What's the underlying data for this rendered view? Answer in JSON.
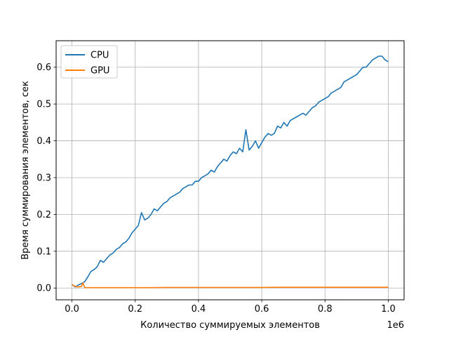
{
  "chart_data": {
    "type": "line",
    "title": "",
    "xlabel": "Количество суммируемых элементов",
    "ylabel": "Время суммирования элементов, сек",
    "x_offset_label": "1e6",
    "xlim": [
      -0.05,
      1.05
    ],
    "ylim": [
      -0.032,
      0.672
    ],
    "grid": true,
    "legend_position": "top-left",
    "x_ticks": [
      0.0,
      0.2,
      0.4,
      0.6,
      0.8,
      1.0
    ],
    "x_tick_labels": [
      "0.0",
      "0.2",
      "0.4",
      "0.6",
      "0.8",
      "1.0"
    ],
    "y_ticks": [
      0.0,
      0.1,
      0.2,
      0.3,
      0.4,
      0.5,
      0.6
    ],
    "y_tick_labels": [
      "0.0",
      "0.1",
      "0.2",
      "0.3",
      "0.4",
      "0.5",
      "0.6"
    ],
    "series": [
      {
        "name": "CPU",
        "color": "#1f77b4",
        "points": [
          [
            0.0,
            0.01
          ],
          [
            0.01,
            0.003
          ],
          [
            0.02,
            0.008
          ],
          [
            0.03,
            0.012
          ],
          [
            0.04,
            0.017
          ],
          [
            0.05,
            0.03
          ],
          [
            0.06,
            0.045
          ],
          [
            0.07,
            0.05
          ],
          [
            0.08,
            0.058
          ],
          [
            0.09,
            0.075
          ],
          [
            0.1,
            0.07
          ],
          [
            0.11,
            0.08
          ],
          [
            0.12,
            0.09
          ],
          [
            0.13,
            0.095
          ],
          [
            0.14,
            0.105
          ],
          [
            0.15,
            0.11
          ],
          [
            0.16,
            0.12
          ],
          [
            0.17,
            0.125
          ],
          [
            0.18,
            0.135
          ],
          [
            0.19,
            0.15
          ],
          [
            0.2,
            0.16
          ],
          [
            0.21,
            0.17
          ],
          [
            0.22,
            0.205
          ],
          [
            0.23,
            0.185
          ],
          [
            0.24,
            0.19
          ],
          [
            0.25,
            0.2
          ],
          [
            0.26,
            0.215
          ],
          [
            0.27,
            0.21
          ],
          [
            0.28,
            0.22
          ],
          [
            0.29,
            0.23
          ],
          [
            0.3,
            0.235
          ],
          [
            0.31,
            0.245
          ],
          [
            0.32,
            0.25
          ],
          [
            0.33,
            0.255
          ],
          [
            0.34,
            0.26
          ],
          [
            0.35,
            0.27
          ],
          [
            0.36,
            0.275
          ],
          [
            0.37,
            0.28
          ],
          [
            0.38,
            0.28
          ],
          [
            0.39,
            0.29
          ],
          [
            0.4,
            0.29
          ],
          [
            0.41,
            0.3
          ],
          [
            0.42,
            0.305
          ],
          [
            0.43,
            0.31
          ],
          [
            0.44,
            0.32
          ],
          [
            0.45,
            0.315
          ],
          [
            0.46,
            0.33
          ],
          [
            0.47,
            0.34
          ],
          [
            0.48,
            0.35
          ],
          [
            0.49,
            0.345
          ],
          [
            0.5,
            0.36
          ],
          [
            0.51,
            0.37
          ],
          [
            0.52,
            0.365
          ],
          [
            0.53,
            0.38
          ],
          [
            0.54,
            0.37
          ],
          [
            0.55,
            0.43
          ],
          [
            0.56,
            0.375
          ],
          [
            0.57,
            0.385
          ],
          [
            0.58,
            0.4
          ],
          [
            0.59,
            0.38
          ],
          [
            0.6,
            0.395
          ],
          [
            0.61,
            0.41
          ],
          [
            0.62,
            0.42
          ],
          [
            0.63,
            0.415
          ],
          [
            0.64,
            0.42
          ],
          [
            0.65,
            0.44
          ],
          [
            0.66,
            0.435
          ],
          [
            0.67,
            0.45
          ],
          [
            0.68,
            0.44
          ],
          [
            0.69,
            0.455
          ],
          [
            0.7,
            0.46
          ],
          [
            0.71,
            0.465
          ],
          [
            0.72,
            0.47
          ],
          [
            0.73,
            0.475
          ],
          [
            0.74,
            0.47
          ],
          [
            0.75,
            0.48
          ],
          [
            0.76,
            0.49
          ],
          [
            0.77,
            0.495
          ],
          [
            0.78,
            0.505
          ],
          [
            0.79,
            0.51
          ],
          [
            0.8,
            0.515
          ],
          [
            0.81,
            0.52
          ],
          [
            0.82,
            0.53
          ],
          [
            0.83,
            0.535
          ],
          [
            0.84,
            0.54
          ],
          [
            0.85,
            0.545
          ],
          [
            0.86,
            0.56
          ],
          [
            0.87,
            0.565
          ],
          [
            0.88,
            0.57
          ],
          [
            0.89,
            0.575
          ],
          [
            0.9,
            0.58
          ],
          [
            0.91,
            0.59
          ],
          [
            0.92,
            0.6
          ],
          [
            0.93,
            0.6
          ],
          [
            0.94,
            0.61
          ],
          [
            0.95,
            0.62
          ],
          [
            0.96,
            0.625
          ],
          [
            0.97,
            0.63
          ],
          [
            0.98,
            0.63
          ],
          [
            0.99,
            0.62
          ],
          [
            1.0,
            0.615
          ]
        ]
      },
      {
        "name": "GPU",
        "color": "#ff7f0e",
        "points": [
          [
            0.0,
            0.01
          ],
          [
            0.01,
            0.004
          ],
          [
            0.02,
            0.003
          ],
          [
            0.03,
            0.004
          ],
          [
            0.035,
            0.014
          ],
          [
            0.04,
            0.001
          ],
          [
            0.05,
            0.001
          ],
          [
            0.1,
            0.001
          ],
          [
            0.15,
            0.001
          ],
          [
            0.2,
            0.001
          ],
          [
            0.25,
            0.001
          ],
          [
            0.3,
            0.0015
          ],
          [
            0.35,
            0.0015
          ],
          [
            0.4,
            0.0015
          ],
          [
            0.45,
            0.0015
          ],
          [
            0.5,
            0.0015
          ],
          [
            0.55,
            0.0015
          ],
          [
            0.6,
            0.0015
          ],
          [
            0.65,
            0.002
          ],
          [
            0.7,
            0.002
          ],
          [
            0.75,
            0.002
          ],
          [
            0.8,
            0.002
          ],
          [
            0.85,
            0.002
          ],
          [
            0.9,
            0.002
          ],
          [
            0.95,
            0.002
          ],
          [
            1.0,
            0.002
          ]
        ]
      }
    ]
  }
}
